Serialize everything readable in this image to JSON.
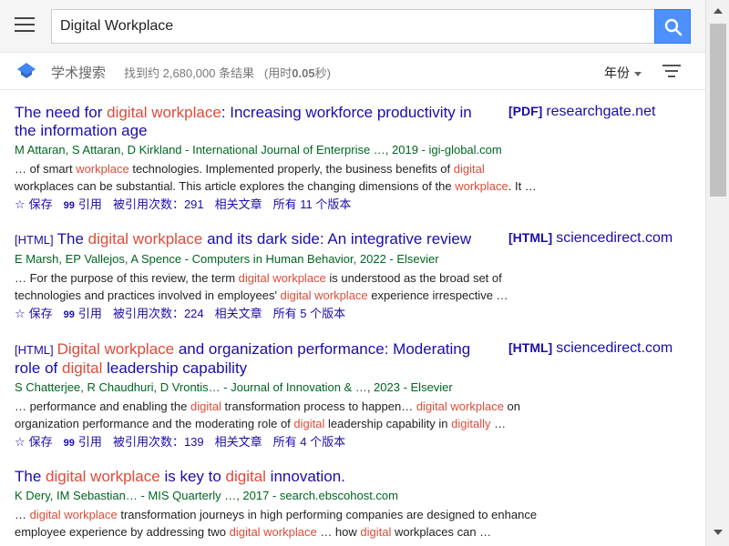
{
  "search": {
    "query": "Digital Workplace"
  },
  "header": {
    "brand": "学术搜索",
    "stats_prefix": "找到约 2,680,000 条结果",
    "stats_time_prefix": "(用时",
    "stats_time_value": "0.05",
    "stats_time_suffix": "秒)",
    "year_filter": "年份"
  },
  "colors": {
    "link": "#1a0dab",
    "highlight": "#dd4b39",
    "author": "#006621",
    "search_button": "#4d90fe"
  },
  "icons": [
    "menu-icon",
    "search-icon",
    "scholar-logo-icon",
    "sort-icon",
    "star-icon",
    "quote-icon"
  ],
  "results": [
    {
      "title_parts": [
        {
          "t": "The need for ",
          "hl": false
        },
        {
          "t": "digital workplace",
          "hl": true
        },
        {
          "t": ": Increasing workforce productivity in the information age",
          "hl": false
        }
      ],
      "side_type": "[PDF]",
      "side_source": "researchgate.net",
      "authors_line": "M Attaran, S Attaran, D Kirkland - International Journal of Enterprise …, 2019 - igi-global.com",
      "snippet_parts": [
        {
          "t": "… of smart ",
          "hl": false
        },
        {
          "t": "workplace",
          "hl": true
        },
        {
          "t": " technologies. Implemented properly, the business benefits of ",
          "hl": false
        },
        {
          "t": "digital",
          "hl": true
        },
        {
          "t": " workplaces can be substantial. This article explores the changing dimensions of the ",
          "hl": false
        },
        {
          "t": "workplace",
          "hl": true
        },
        {
          "t": ". It …",
          "hl": false
        }
      ],
      "save": "保存",
      "cite": "引用",
      "cited_by": "被引用次数：291",
      "related": "相关文章",
      "versions": "所有 11 个版本"
    },
    {
      "title_tag": "[HTML]",
      "title_parts": [
        {
          "t": "The ",
          "hl": false
        },
        {
          "t": "digital workplace",
          "hl": true
        },
        {
          "t": " and its dark side: An integrative review",
          "hl": false
        }
      ],
      "side_type": "[HTML]",
      "side_source": "sciencedirect.com",
      "authors_line": "E Marsh, EP Vallejos, A Spence - Computers in Human Behavior, 2022 - Elsevier",
      "snippet_parts": [
        {
          "t": "… For the purpose of this review, the term ",
          "hl": false
        },
        {
          "t": "digital workplace",
          "hl": true
        },
        {
          "t": " is understood as the broad set of technologies and practices involved in employees' ",
          "hl": false
        },
        {
          "t": "digital workplace",
          "hl": true
        },
        {
          "t": " experience irrespective …",
          "hl": false
        }
      ],
      "save": "保存",
      "cite": "引用",
      "cited_by": "被引用次数：224",
      "related": "相关文章",
      "versions": "所有 5 个版本"
    },
    {
      "title_tag": "[HTML]",
      "title_parts": [
        {
          "t": "Digital workplace",
          "hl": true
        },
        {
          "t": " and organization performance: Moderating role of ",
          "hl": false
        },
        {
          "t": "digital",
          "hl": true
        },
        {
          "t": " leadership capability",
          "hl": false
        }
      ],
      "side_type": "[HTML]",
      "side_source": "sciencedirect.com",
      "authors_line": "S Chatterjee, R Chaudhuri, D Vrontis… - Journal of Innovation & …, 2023 - Elsevier",
      "snippet_parts": [
        {
          "t": "… performance and enabling the ",
          "hl": false
        },
        {
          "t": "digital",
          "hl": true
        },
        {
          "t": " transformation process to happen… ",
          "hl": false
        },
        {
          "t": "digital workplace",
          "hl": true
        },
        {
          "t": " on organization performance and the moderating role of ",
          "hl": false
        },
        {
          "t": "digital",
          "hl": true
        },
        {
          "t": " leadership capability in ",
          "hl": false
        },
        {
          "t": "digitally",
          "hl": true
        },
        {
          "t": " …",
          "hl": false
        }
      ],
      "save": "保存",
      "cite": "引用",
      "cited_by": "被引用次数：139",
      "related": "相关文章",
      "versions": "所有 4 个版本"
    },
    {
      "title_parts": [
        {
          "t": "The ",
          "hl": false
        },
        {
          "t": "digital workplace",
          "hl": true
        },
        {
          "t": " is key to ",
          "hl": false
        },
        {
          "t": "digital",
          "hl": true
        },
        {
          "t": " innovation.",
          "hl": false
        }
      ],
      "authors_line": "K Dery, IM Sebastian… - MIS Quarterly …, 2017 - search.ebscohost.com",
      "snippet_parts": [
        {
          "t": "… ",
          "hl": false
        },
        {
          "t": "digital workplace",
          "hl": true
        },
        {
          "t": " transformation journeys in high performing companies are designed to enhance employee experience by addressing two ",
          "hl": false
        },
        {
          "t": "digital workplace",
          "hl": true
        },
        {
          "t": " … how ",
          "hl": false
        },
        {
          "t": "digital",
          "hl": true
        },
        {
          "t": " workplaces can …",
          "hl": false
        }
      ]
    }
  ]
}
